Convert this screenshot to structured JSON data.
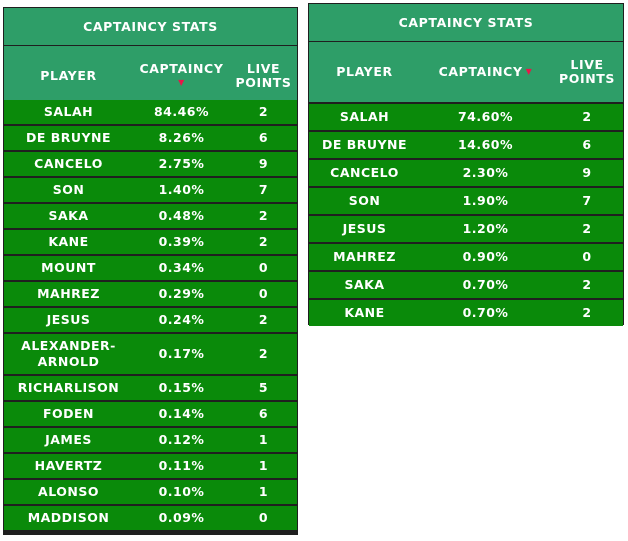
{
  "tables": [
    {
      "title": "CAPTAINCY STATS",
      "headers": {
        "player": "PLAYER",
        "captaincy": "CAPTAINCY",
        "live_points": "LIVE POINTS",
        "sort_indicator": "▼"
      },
      "rows": [
        {
          "player": "SALAH",
          "captaincy": "84.46%",
          "points": "2"
        },
        {
          "player": "DE BRUYNE",
          "captaincy": "8.26%",
          "points": "6"
        },
        {
          "player": "CANCELO",
          "captaincy": "2.75%",
          "points": "9"
        },
        {
          "player": "SON",
          "captaincy": "1.40%",
          "points": "7"
        },
        {
          "player": "SAKA",
          "captaincy": "0.48%",
          "points": "2"
        },
        {
          "player": "KANE",
          "captaincy": "0.39%",
          "points": "2"
        },
        {
          "player": "MOUNT",
          "captaincy": "0.34%",
          "points": "0"
        },
        {
          "player": "MAHREZ",
          "captaincy": "0.29%",
          "points": "0"
        },
        {
          "player": "JESUS",
          "captaincy": "0.24%",
          "points": "2"
        },
        {
          "player": "ALEXANDER-ARNOLD",
          "captaincy": "0.17%",
          "points": "2"
        },
        {
          "player": "RICHARLISON",
          "captaincy": "0.15%",
          "points": "5"
        },
        {
          "player": "FODEN",
          "captaincy": "0.14%",
          "points": "6"
        },
        {
          "player": "JAMES",
          "captaincy": "0.12%",
          "points": "1"
        },
        {
          "player": "HAVERTZ",
          "captaincy": "0.11%",
          "points": "1"
        },
        {
          "player": "ALONSO",
          "captaincy": "0.10%",
          "points": "1"
        },
        {
          "player": "MADDISON",
          "captaincy": "0.09%",
          "points": "0"
        }
      ]
    },
    {
      "title": "CAPTAINCY STATS",
      "headers": {
        "player": "PLAYER",
        "captaincy": "CAPTAINCY",
        "live_points": "LIVE POINTS",
        "sort_indicator": "▼"
      },
      "rows": [
        {
          "player": "SALAH",
          "captaincy": "74.60%",
          "points": "2"
        },
        {
          "player": "DE BRUYNE",
          "captaincy": "14.60%",
          "points": "6"
        },
        {
          "player": "CANCELO",
          "captaincy": "2.30%",
          "points": "9"
        },
        {
          "player": "SON",
          "captaincy": "1.90%",
          "points": "7"
        },
        {
          "player": "JESUS",
          "captaincy": "1.20%",
          "points": "2"
        },
        {
          "player": "MAHREZ",
          "captaincy": "0.90%",
          "points": "0"
        },
        {
          "player": "SAKA",
          "captaincy": "0.70%",
          "points": "2"
        },
        {
          "player": "KANE",
          "captaincy": "0.70%",
          "points": "2"
        }
      ]
    }
  ],
  "colors": {
    "header": "#2e9e68",
    "row": "#0a8a0a",
    "sort_arrow": "#e8174a",
    "border": "#1f1f1f"
  }
}
